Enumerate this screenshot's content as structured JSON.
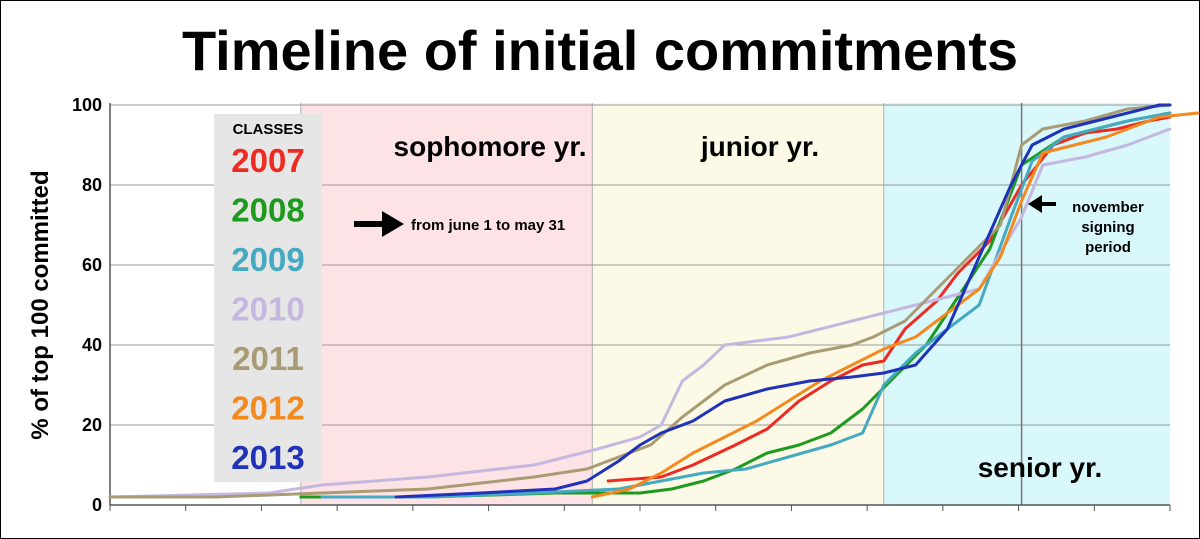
{
  "chart_data": {
    "type": "line",
    "title": "Timeline of initial commitments",
    "ylabel": "% of top 100 committed",
    "xlabel": "",
    "ylim": [
      0,
      100
    ],
    "xlim": [
      0,
      1
    ],
    "yticks": [
      0,
      20,
      40,
      60,
      80,
      100
    ],
    "grid": true,
    "legend_title": "CLASSES",
    "legend_placement": "top-left",
    "bands": [
      {
        "label": "sophomore yr.",
        "from": 0.18,
        "to": 0.455,
        "color": "#fde3e6"
      },
      {
        "label": "junior yr.",
        "from": 0.455,
        "to": 0.73,
        "color": "#fcfae6"
      },
      {
        "label": "senior yr.",
        "from": 0.73,
        "to": 1.0,
        "color": "#d8f8fb"
      }
    ],
    "annotations": [
      {
        "text": "from june 1 to may 31"
      },
      {
        "text": [
          "november",
          "signing",
          "period"
        ]
      }
    ],
    "series": [
      {
        "name": "2007",
        "color": "#ee2b22",
        "x": [
          0.47,
          0.52,
          0.55,
          0.59,
          0.62,
          0.65,
          0.68,
          0.71,
          0.73,
          0.75,
          0.78,
          0.8,
          0.83,
          0.86,
          0.89,
          0.92,
          0.95,
          0.98,
          1.0
        ],
        "y": [
          6,
          7,
          10,
          15,
          19,
          26,
          31,
          35,
          36,
          44,
          51,
          58,
          66,
          80,
          90,
          93,
          94,
          96,
          97
        ]
      },
      {
        "name": "2008",
        "color": "#1e9a1e",
        "x": [
          0.18,
          0.3,
          0.42,
          0.47,
          0.5,
          0.53,
          0.56,
          0.59,
          0.62,
          0.65,
          0.68,
          0.71,
          0.74,
          0.77,
          0.8,
          0.83,
          0.86,
          0.9,
          0.93,
          0.96,
          1.0
        ],
        "y": [
          2,
          2,
          3,
          3,
          3,
          4,
          6,
          9,
          13,
          15,
          18,
          24,
          32,
          40,
          52,
          64,
          85,
          92,
          94,
          96,
          98
        ]
      },
      {
        "name": "2009",
        "color": "#45a9c2",
        "x": [
          0.2,
          0.3,
          0.4,
          0.48,
          0.52,
          0.56,
          0.6,
          0.64,
          0.68,
          0.71,
          0.73,
          0.76,
          0.79,
          0.82,
          0.85,
          0.87,
          0.9,
          0.93,
          0.96,
          1.0
        ],
        "y": [
          2,
          2,
          3,
          4,
          6,
          8,
          9,
          12,
          15,
          18,
          30,
          38,
          44,
          50,
          72,
          86,
          92,
          94,
          96,
          98
        ]
      },
      {
        "name": "2010",
        "color": "#c5b8e0",
        "x": [
          0.0,
          0.15,
          0.2,
          0.3,
          0.4,
          0.46,
          0.5,
          0.52,
          0.54,
          0.56,
          0.58,
          0.61,
          0.64,
          0.67,
          0.7,
          0.73,
          0.76,
          0.79,
          0.82,
          0.86,
          0.88,
          0.92,
          0.96,
          0.98,
          1.0
        ],
        "y": [
          2,
          3,
          5,
          7,
          10,
          14,
          17,
          20,
          31,
          35,
          40,
          41,
          42,
          44,
          46,
          48,
          50,
          52,
          54,
          72,
          85,
          87,
          90,
          92,
          94
        ]
      },
      {
        "name": "2011",
        "color": "#a99b73",
        "x": [
          0.0,
          0.1,
          0.2,
          0.3,
          0.4,
          0.45,
          0.48,
          0.51,
          0.54,
          0.58,
          0.62,
          0.66,
          0.7,
          0.72,
          0.75,
          0.78,
          0.81,
          0.84,
          0.86,
          0.88,
          0.92,
          0.96,
          1.0
        ],
        "y": [
          2,
          2,
          3,
          4,
          7,
          9,
          12,
          15,
          22,
          30,
          35,
          38,
          40,
          42,
          46,
          54,
          62,
          70,
          90,
          94,
          96,
          99,
          100
        ]
      },
      {
        "name": "2012",
        "color": "#f28a20",
        "x": [
          0.455,
          0.49,
          0.52,
          0.55,
          0.58,
          0.61,
          0.64,
          0.67,
          0.7,
          0.73,
          0.76,
          0.79,
          0.82,
          0.84,
          0.86,
          0.88,
          0.91,
          0.94,
          0.96,
          0.99,
          1.03
        ],
        "y": [
          2,
          4,
          8,
          13,
          17,
          21,
          26,
          31,
          35,
          39,
          42,
          48,
          54,
          62,
          76,
          88,
          90,
          92,
          94,
          97,
          98
        ]
      },
      {
        "name": "2013",
        "color": "#1f32b8",
        "x": [
          0.27,
          0.35,
          0.42,
          0.45,
          0.48,
          0.5,
          0.52,
          0.55,
          0.58,
          0.62,
          0.66,
          0.7,
          0.73,
          0.76,
          0.79,
          0.81,
          0.83,
          0.85,
          0.87,
          0.9,
          0.93,
          0.96,
          0.99,
          1.0
        ],
        "y": [
          2,
          3,
          4,
          6,
          11,
          15,
          18,
          21,
          26,
          29,
          31,
          32,
          33,
          35,
          44,
          56,
          68,
          80,
          90,
          94,
          96,
          98,
          100,
          100
        ]
      }
    ]
  }
}
